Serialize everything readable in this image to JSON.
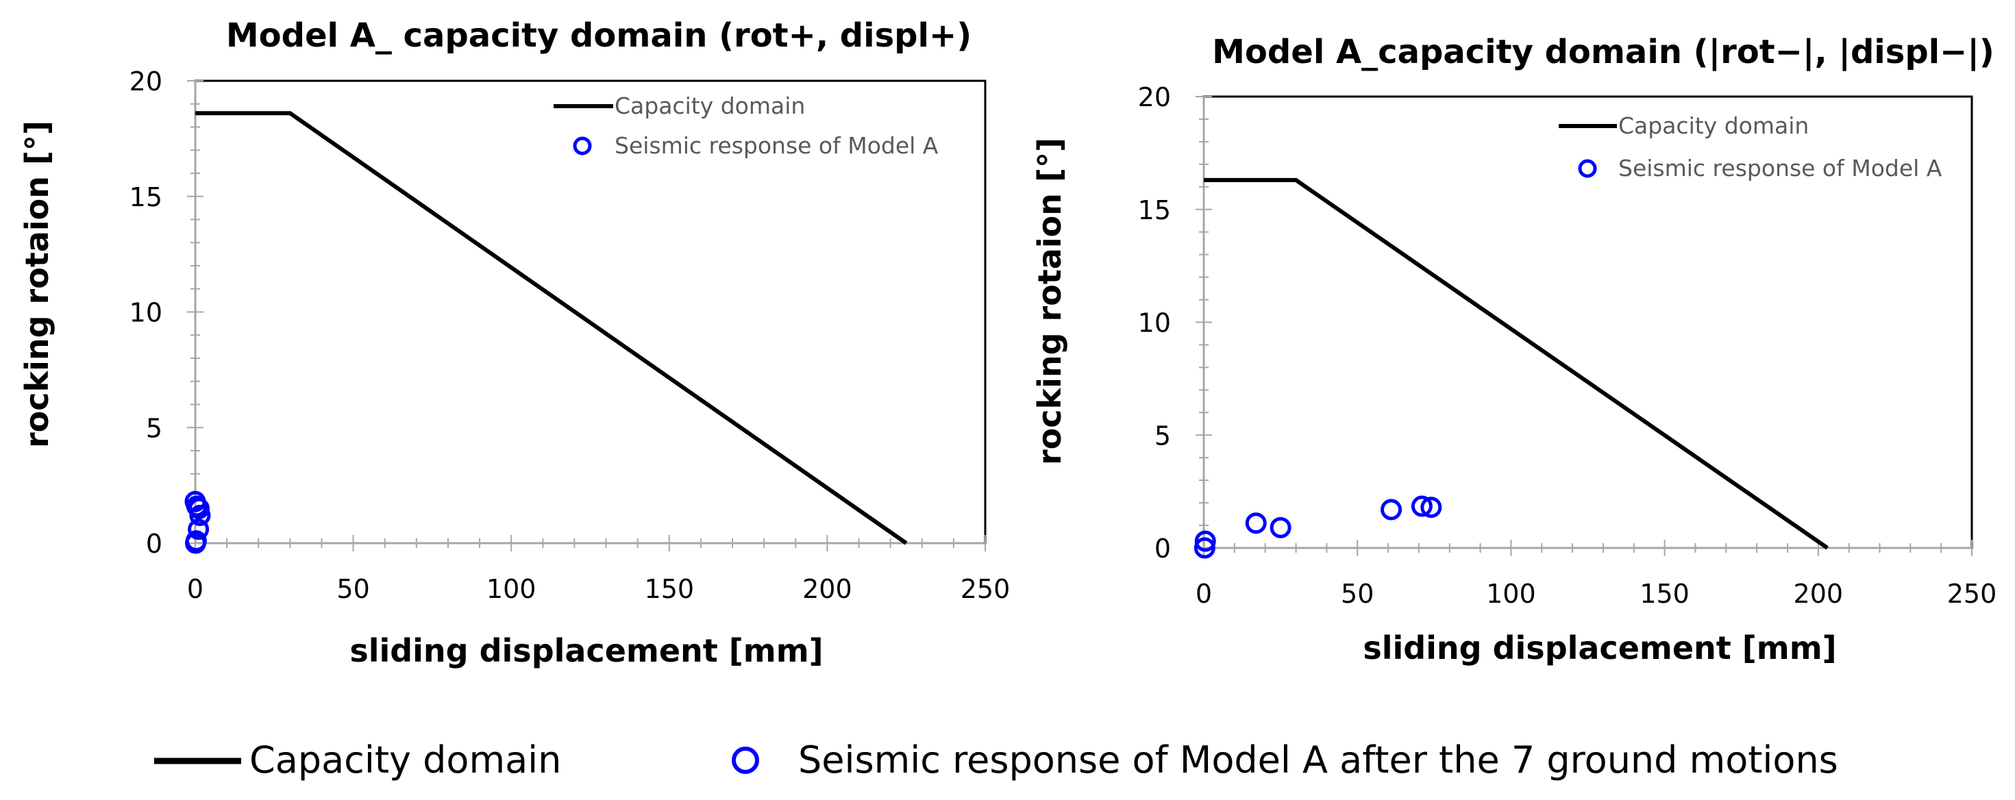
{
  "chart_data": [
    {
      "type": "scatter",
      "title": "Model A_ capacity domain (rot+, displ+)",
      "xlabel": "sliding displacement [mm]",
      "ylabel": "rocking rotaion   [°]",
      "xlim": [
        0,
        250
      ],
      "ylim": [
        0,
        20
      ],
      "x_ticks": [
        0,
        50,
        100,
        150,
        200,
        250
      ],
      "y_ticks": [
        0,
        5,
        10,
        15,
        20
      ],
      "x_tick_labels": [
        "0",
        "50",
        "100",
        "150",
        "200",
        "250"
      ],
      "y_tick_labels": [
        "0",
        "5",
        "10",
        "15",
        "20"
      ],
      "legend_position": "top-right",
      "series": [
        {
          "name": "Capacity domain",
          "kind": "line",
          "color": "#000000",
          "x": [
            0,
            30,
            225
          ],
          "y": [
            18.6,
            18.6,
            0
          ]
        },
        {
          "name": "Seismic response of Model A",
          "kind": "marker",
          "color": "#0000ff",
          "x": [
            0,
            0.5,
            1.2,
            1.5,
            1.0,
            0.3,
            0.1
          ],
          "y": [
            1.8,
            1.6,
            1.5,
            1.2,
            0.6,
            0.1,
            0.0
          ]
        }
      ]
    },
    {
      "type": "scatter",
      "title": "Model A_capacity domain (|rot−|, |displ−|)",
      "xlabel": "sliding displacement [mm]",
      "ylabel": "rocking rotaion   [°]",
      "xlim": [
        0,
        250
      ],
      "ylim": [
        0,
        20
      ],
      "x_ticks": [
        0,
        50,
        100,
        150,
        200,
        250
      ],
      "y_ticks": [
        0,
        5,
        10,
        15,
        20
      ],
      "x_tick_labels": [
        "0",
        "50",
        "100",
        "150",
        "200",
        "250"
      ],
      "y_tick_labels": [
        "0",
        "5",
        "10",
        "15",
        "20"
      ],
      "legend_position": "top-right",
      "series": [
        {
          "name": "Capacity domain",
          "kind": "line",
          "color": "#000000",
          "x": [
            0,
            30,
            203
          ],
          "y": [
            16.3,
            16.3,
            0
          ]
        },
        {
          "name": "Seismic response of Model A",
          "kind": "marker",
          "color": "#0000ff",
          "x": [
            0.5,
            0.3,
            17,
            25,
            61,
            71,
            74
          ],
          "y": [
            0.3,
            0.0,
            1.1,
            0.9,
            1.7,
            1.85,
            1.8
          ]
        }
      ]
    }
  ],
  "bottom_legend": {
    "capacity_label": "Capacity domain",
    "seismic_label": "Seismic response of Model A after the 7 ground motions",
    "line_color": "#000000",
    "marker_color": "#0000ff"
  }
}
